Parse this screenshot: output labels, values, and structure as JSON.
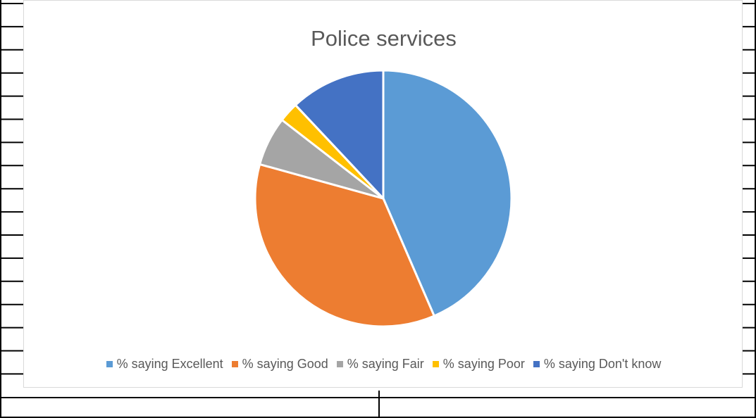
{
  "chart_data": {
    "type": "pie",
    "title": "Police services",
    "legend_position": "bottom",
    "slices": [
      {
        "label": "% saying Excellent",
        "value": 43.5,
        "color": "#5b9bd5"
      },
      {
        "label": "% saying Good",
        "value": 35.8,
        "color": "#ed7d31"
      },
      {
        "label": "% saying Fair",
        "value": 6.2,
        "color": "#a5a5a5"
      },
      {
        "label": "% saying Poor",
        "value": 2.5,
        "color": "#ffc000"
      },
      {
        "label": "% saying Don't know",
        "value": 12.0,
        "color": "#4472c4"
      }
    ]
  }
}
